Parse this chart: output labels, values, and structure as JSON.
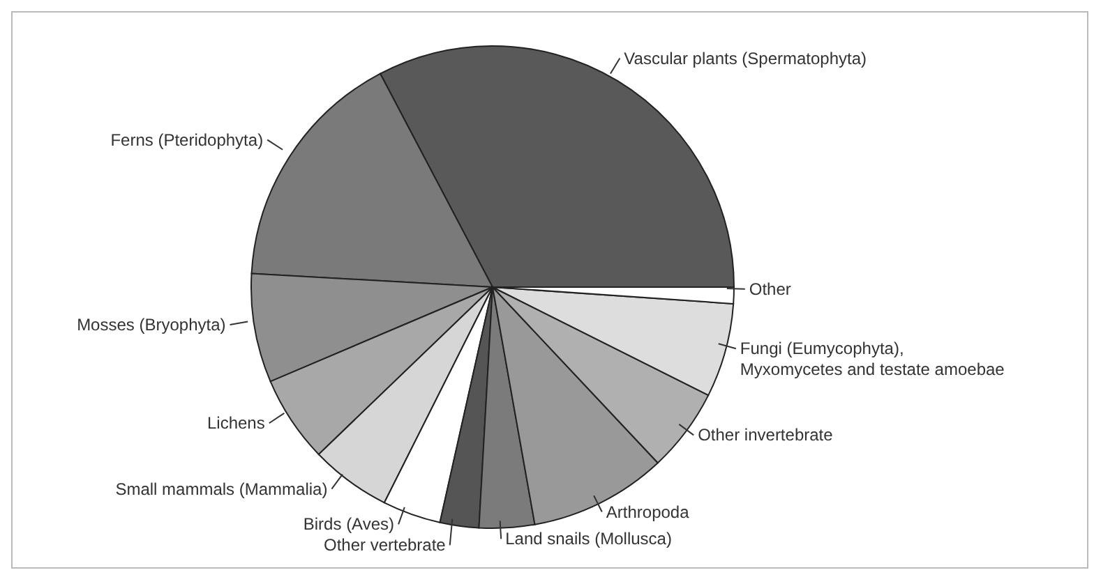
{
  "chart_data": {
    "type": "pie",
    "categories": [
      "Vascular plants (Spermatophyta)",
      "Ferns (Pteridophyta)",
      "Mosses (Bryophyta)",
      "Lichens",
      "Small mammals (Mammalia)",
      "Birds (Aves)",
      "Other vertebrate",
      "Land snails (Mollusca)",
      "Arthropoda",
      "Other invertebrate",
      "Fungi (Eumycophyta),\nMyxomycetes and testate amoebae",
      "Other"
    ],
    "values": [
      32.7,
      16.4,
      7.3,
      5.8,
      5.4,
      3.9,
      2.6,
      3.7,
      9.2,
      5.6,
      6.3,
      1.1
    ],
    "colors": [
      "#595959",
      "#7a7a7a",
      "#8f8f8f",
      "#a8a8a8",
      "#d6d6d6",
      "#ffffff",
      "#555555",
      "#7b7b7b",
      "#999999",
      "#b0b0b0",
      "#dddddd",
      "#ffffff"
    ]
  }
}
